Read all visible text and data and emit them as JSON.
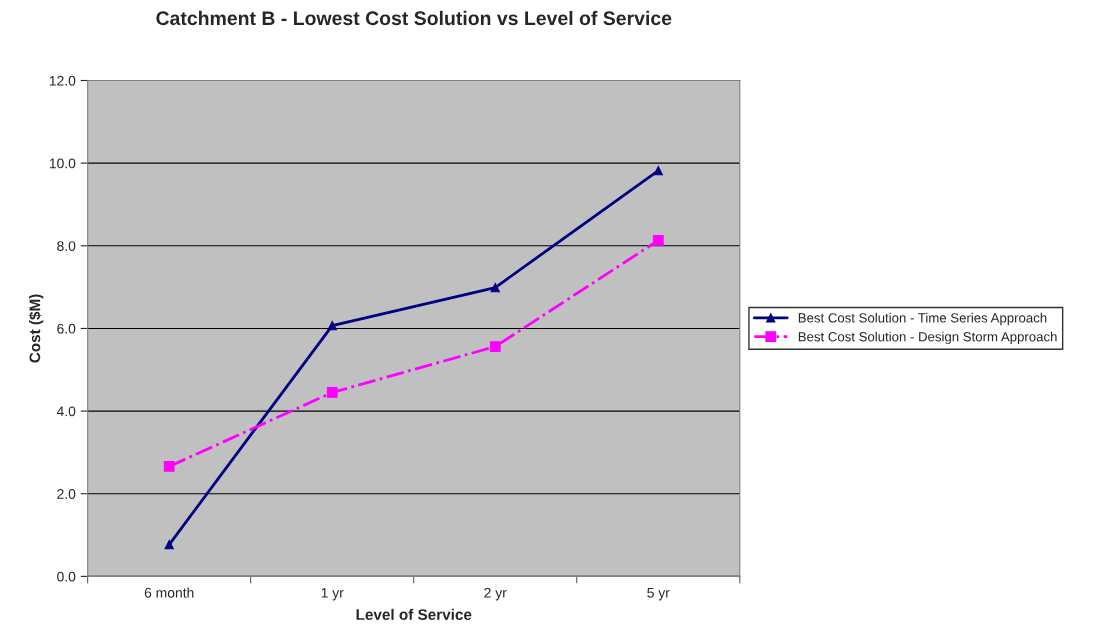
{
  "chart_data": {
    "type": "line",
    "title": "Catchment B - Lowest Cost Solution vs Level of Service",
    "xlabel": "Level of Service",
    "ylabel": "Cost ($M)",
    "categories": [
      "6 month",
      "1 yr",
      "2 yr",
      "5 yr"
    ],
    "series": [
      {
        "name": "Best Cost Solution - Time Series Approach",
        "color": "#000080",
        "values": [
          0.77,
          6.07,
          6.99,
          9.82
        ],
        "marker": "triangle",
        "line_style": "solid"
      },
      {
        "name": "Best Cost Solution - Design Storm Approach",
        "color": "#ff00ff",
        "values": [
          2.66,
          4.45,
          5.56,
          8.13
        ],
        "marker": "square",
        "line_style": "dashed"
      }
    ],
    "ylim": [
      0,
      12
    ],
    "yticks": [
      {
        "value": 0,
        "label": "0.0"
      },
      {
        "value": 2,
        "label": "2.0"
      },
      {
        "value": 4,
        "label": "4.0"
      },
      {
        "value": 6,
        "label": "6.0"
      },
      {
        "value": 8,
        "label": "8.0"
      },
      {
        "value": 10,
        "label": "10.0"
      },
      {
        "value": 12,
        "label": "12.0"
      }
    ],
    "grid": "y",
    "legend": "right"
  }
}
